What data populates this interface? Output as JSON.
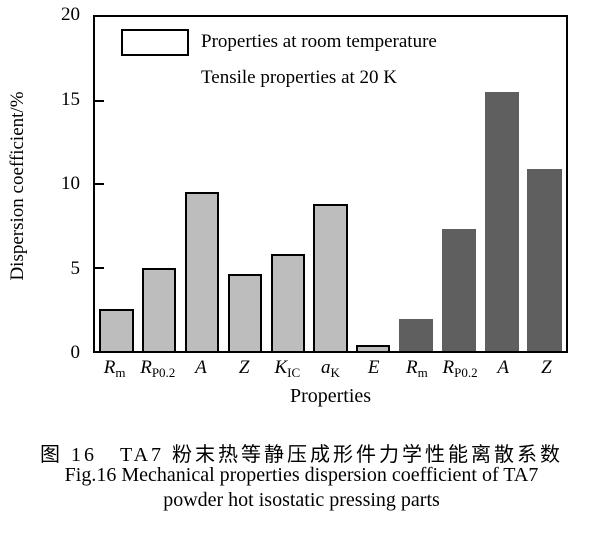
{
  "chart_data": {
    "type": "bar",
    "title": "",
    "xlabel": "Properties",
    "ylabel": "Dispersion coefficient/%",
    "ylim": [
      0,
      20
    ],
    "yticks": [
      0,
      5,
      10,
      15,
      20
    ],
    "grid": false,
    "legend_position": "top-left-inside",
    "legend": [
      {
        "label": "Properties at room temperature",
        "color": "#bdbdbd",
        "border": "#000000"
      },
      {
        "label": "Tensile properties at 20 K",
        "color": "#5f5f5f",
        "border": "none"
      }
    ],
    "bars": [
      {
        "label_main": "R",
        "label_sub": "m",
        "value": 2.5,
        "series": 0
      },
      {
        "label_main": "R",
        "label_sub": "P0.2",
        "value": 5.0,
        "series": 0
      },
      {
        "label_main": "A",
        "label_sub": "",
        "value": 9.5,
        "series": 0
      },
      {
        "label_main": "Z",
        "label_sub": "",
        "value": 4.6,
        "series": 0
      },
      {
        "label_main": "K",
        "label_sub": "IC",
        "value": 5.8,
        "series": 0
      },
      {
        "label_main": "a",
        "label_sub": "K",
        "value": 8.8,
        "series": 0
      },
      {
        "label_main": "E",
        "label_sub": "",
        "value": 0.35,
        "series": 0
      },
      {
        "label_main": "R",
        "label_sub": "m",
        "value": 1.9,
        "series": 1
      },
      {
        "label_main": "R",
        "label_sub": "P0.2",
        "value": 7.3,
        "series": 1
      },
      {
        "label_main": "A",
        "label_sub": "",
        "value": 15.5,
        "series": 1
      },
      {
        "label_main": "Z",
        "label_sub": "",
        "value": 10.9,
        "series": 1
      }
    ]
  },
  "caption": {
    "zh": "图 16　TA7 粉末热等静压成形件力学性能离散系数",
    "en_line1": "Fig.16 Mechanical properties dispersion coefficient of TA7",
    "en_line2": "powder hot isostatic pressing parts"
  },
  "colors": {
    "bar_light": "#bdbdbd",
    "bar_dark": "#5f5f5f",
    "axis": "#000000",
    "background": "#ffffff"
  }
}
